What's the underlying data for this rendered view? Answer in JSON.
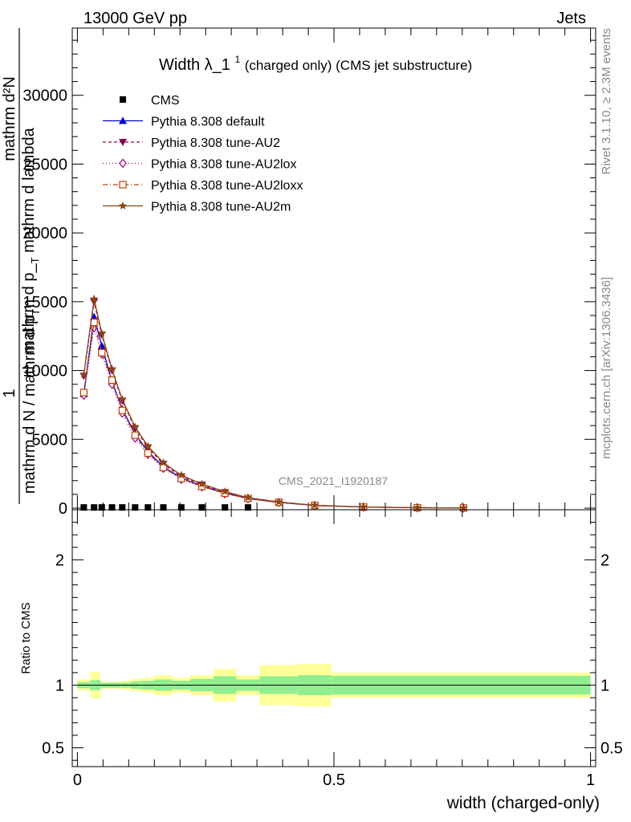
{
  "header": {
    "left": "13000 GeV pp",
    "right": "Jets"
  },
  "side_labels": {
    "rivet": "Rivet 3.1.10, ≥ 2.3M events",
    "mcplots": "mcplots.cern.ch [arXiv:1306.3436]"
  },
  "watermark": "CMS_2021_I1920187",
  "chart_data": [
    {
      "type": "line",
      "title_main": "Width λ_1",
      "title_sup": "1",
      "title_rest": " (charged only) (CMS jet substructure)",
      "ylabel_top": "1",
      "ylabel_num": "mathrm d²N",
      "ylabel_num_sub": "T",
      "ylabel_num_rest": "mathrm d p_",
      "ylabel_num_rest2": " mathrm d lambda",
      "ylabel_den": "mathrm d N / mathrm d p",
      "ylabel_den_sub": "T",
      "ylim": [
        0,
        35000
      ],
      "xlim": [
        -0.01,
        1.01
      ],
      "yticks": [
        0,
        5000,
        10000,
        15000,
        20000,
        25000,
        30000
      ],
      "ytick_labels": [
        "0",
        "5000",
        "10000",
        "15000",
        "20000",
        "25000",
        "30000"
      ],
      "x": [
        0.0125,
        0.0325,
        0.0475,
        0.0675,
        0.0875,
        0.1125,
        0.1375,
        0.1675,
        0.2025,
        0.2425,
        0.2875,
        0.3325,
        0.3925,
        0.4625,
        0.5575,
        0.6625,
        0.7525
      ],
      "series": [
        {
          "name": "CMS",
          "color": "#000000",
          "marker": "square",
          "values": [
            50,
            50,
            50,
            50,
            50,
            50,
            50,
            50,
            50,
            50,
            50,
            50,
            0,
            0,
            0,
            0,
            0
          ]
        },
        {
          "name": "Pythia 8.308 default",
          "color": "#0000cc",
          "marker": "triangle-up",
          "dash": "",
          "values": [
            8300,
            13900,
            11800,
            9200,
            7200,
            5400,
            4100,
            3000,
            2200,
            1600,
            1100,
            700,
            420,
            200,
            80,
            30,
            10
          ]
        },
        {
          "name": "Pythia 8.308 tune-AU2",
          "color": "#8b0050",
          "marker": "triangle-down",
          "dash": "4,3",
          "values": [
            9600,
            15000,
            12600,
            10000,
            7800,
            5800,
            4400,
            3200,
            2300,
            1700,
            1150,
            730,
            430,
            200,
            80,
            30,
            10
          ]
        },
        {
          "name": "Pythia 8.308 tune-AU2lox",
          "color": "#a0007a",
          "marker": "diamond",
          "dash": "1,3",
          "values": [
            8200,
            13100,
            11200,
            9000,
            6900,
            5100,
            3900,
            2900,
            2100,
            1550,
            1050,
            680,
            410,
            190,
            75,
            28,
            9
          ]
        },
        {
          "name": "Pythia 8.308 tune-AU2loxx",
          "color": "#c04000",
          "marker": "open-square",
          "dash": "6,3,1,3",
          "values": [
            8400,
            13500,
            11300,
            9300,
            7100,
            5300,
            4000,
            2950,
            2150,
            1580,
            1080,
            700,
            420,
            195,
            78,
            29,
            10
          ]
        },
        {
          "name": "Pythia 8.308 tune-AU2m",
          "color": "#8b4513",
          "marker": "star",
          "dash": "",
          "values": [
            9700,
            15200,
            12700,
            10100,
            7900,
            5900,
            4500,
            3300,
            2400,
            1750,
            1200,
            760,
            450,
            210,
            85,
            32,
            11
          ]
        }
      ],
      "legend_placement": "top-left"
    },
    {
      "type": "area",
      "ylabel": "Ratio to CMS",
      "xlabel": "width (charged-only)",
      "ylim": [
        0.35,
        2.4
      ],
      "yticks": [
        0.5,
        1,
        2
      ],
      "ytick_labels": [
        "0.5",
        "1",
        "2"
      ],
      "xticks": [
        0,
        0.5,
        1
      ],
      "xtick_labels": [
        "0",
        "0.5",
        "1"
      ],
      "bin_edges": [
        0,
        0.025,
        0.045,
        0.065,
        0.085,
        0.105,
        0.125,
        0.15,
        0.185,
        0.22,
        0.265,
        0.31,
        0.355,
        0.43,
        0.495,
        1.0
      ],
      "inner_band": [
        0.025,
        0.04,
        0.02,
        0.02,
        0.02,
        0.03,
        0.035,
        0.045,
        0.035,
        0.05,
        0.07,
        0.045,
        0.07,
        0.08,
        0.075
      ],
      "outer_band": [
        0.045,
        0.105,
        0.03,
        0.03,
        0.035,
        0.05,
        0.06,
        0.08,
        0.06,
        0.08,
        0.13,
        0.08,
        0.16,
        0.17,
        0.1
      ],
      "inner_color": "#90ee90",
      "outer_color": "#ffff99",
      "reference_line": 1.0
    }
  ]
}
